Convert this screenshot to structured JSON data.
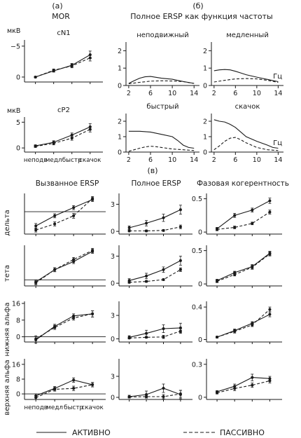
{
  "figure": {
    "label_a": "(а)",
    "label_b": "(б)",
    "label_c": "(в)",
    "mor_title": "MOR",
    "ersp_freq_title": "Полное ERSP как функция частоты",
    "unit_uv": "мкВ",
    "unit_hz": "Гц",
    "legend": {
      "active": "АКТИВНО",
      "passive": "ПАССИВНО"
    }
  },
  "conditions": [
    "неподв",
    "медл",
    "быстр",
    "скачок"
  ],
  "column_titles": [
    "Вызванное ERSP",
    "Полное ERSP",
    "Фазовая когерентность"
  ],
  "row_labels": [
    "дельта",
    "тета",
    "нижняя альфа",
    "верхняя альфа"
  ],
  "chart_data": [
    {
      "id": "mor-cn1",
      "type": "line",
      "title": "cN1",
      "ylabel": "мкВ",
      "categories": [
        "неподв",
        "медл",
        "быстр",
        "скачок"
      ],
      "yticks": [
        -5,
        0
      ],
      "ylim": [
        0.8,
        -6
      ],
      "grid": false,
      "series": [
        {
          "name": "АКТИВНО",
          "style": "solid",
          "values": [
            0,
            -1.0,
            -1.9,
            -3.6
          ],
          "errors": [
            0.1,
            0.2,
            0.3,
            0.6
          ]
        },
        {
          "name": "ПАССИВНО",
          "style": "dashed",
          "values": [
            0,
            -1.1,
            -1.8,
            -3.1
          ],
          "errors": [
            0.1,
            0.2,
            0.3,
            0.5
          ]
        }
      ]
    },
    {
      "id": "mor-cp2",
      "type": "line",
      "title": "cP2",
      "ylabel": "мкВ",
      "categories": [
        "неподв",
        "медл",
        "быстр",
        "скачок"
      ],
      "yticks": [
        0,
        5
      ],
      "ylim": [
        -0.8,
        6
      ],
      "grid": false,
      "series": [
        {
          "name": "АКТИВНО",
          "style": "solid",
          "values": [
            0.4,
            1.1,
            2.5,
            4.1
          ],
          "errors": [
            0.2,
            0.3,
            0.4,
            0.6
          ]
        },
        {
          "name": "ПАССИВНО",
          "style": "dashed",
          "values": [
            0.3,
            0.9,
            1.9,
            3.6
          ],
          "errors": [
            0.2,
            0.3,
            0.4,
            0.5
          ]
        }
      ]
    },
    {
      "id": "ersp-still",
      "type": "line",
      "title": "неподвижный",
      "xticks": [
        2,
        6,
        10,
        14
      ],
      "xlim": [
        1.5,
        15
      ],
      "yticks": [
        0,
        1,
        2
      ],
      "ylim": [
        0,
        2.5
      ],
      "series": [
        {
          "name": "АКТИВНО",
          "style": "solid",
          "x": [
            2,
            3,
            4,
            5,
            6,
            7,
            8,
            10,
            12,
            14
          ],
          "values": [
            0.12,
            0.28,
            0.42,
            0.5,
            0.52,
            0.47,
            0.42,
            0.36,
            0.23,
            0.12
          ]
        },
        {
          "name": "ПАССИВНО",
          "style": "dashed",
          "x": [
            2,
            4,
            6,
            8,
            10,
            12,
            14
          ],
          "values": [
            0.1,
            0.18,
            0.25,
            0.27,
            0.26,
            0.22,
            0.12
          ]
        }
      ]
    },
    {
      "id": "ersp-slow",
      "type": "line",
      "title": "медленный",
      "xunit": "Гц",
      "xticks": [
        2,
        6,
        10,
        14
      ],
      "xlim": [
        1.5,
        15
      ],
      "yticks": [
        0,
        1,
        2
      ],
      "ylim": [
        0,
        2.5
      ],
      "series": [
        {
          "name": "АКТИВНО",
          "style": "solid",
          "x": [
            2,
            3,
            4,
            5,
            6,
            7,
            8,
            10,
            12,
            14
          ],
          "values": [
            0.85,
            0.9,
            0.92,
            0.9,
            0.82,
            0.72,
            0.62,
            0.48,
            0.35,
            0.22
          ]
        },
        {
          "name": "ПАССИВНО",
          "style": "dashed",
          "x": [
            2,
            4,
            6,
            8,
            10,
            12,
            14
          ],
          "values": [
            0.2,
            0.3,
            0.38,
            0.4,
            0.38,
            0.3,
            0.18
          ]
        }
      ]
    },
    {
      "id": "ersp-fast",
      "type": "line",
      "title": "быстрый",
      "xticks": [
        2,
        6,
        10,
        14
      ],
      "xlim": [
        1.5,
        15
      ],
      "yticks": [
        0,
        1,
        2
      ],
      "ylim": [
        0,
        2.5
      ],
      "series": [
        {
          "name": "АКТИВНО",
          "style": "solid",
          "x": [
            2,
            4,
            6,
            8,
            10,
            11,
            12,
            13,
            14
          ],
          "values": [
            1.35,
            1.35,
            1.3,
            1.15,
            1.0,
            0.75,
            0.45,
            0.3,
            0.25
          ]
        },
        {
          "name": "ПАССИВНО",
          "style": "dashed",
          "x": [
            2,
            3,
            4,
            5,
            6,
            7,
            8,
            10,
            12,
            14
          ],
          "values": [
            0.05,
            0.15,
            0.25,
            0.33,
            0.38,
            0.35,
            0.3,
            0.2,
            0.15,
            0.1
          ]
        }
      ]
    },
    {
      "id": "ersp-jump",
      "type": "line",
      "title": "скачок",
      "xunit": "Гц",
      "xticks": [
        2,
        6,
        10,
        14
      ],
      "xlim": [
        1.5,
        15
      ],
      "yticks": [
        0,
        1,
        2
      ],
      "ylim": [
        0,
        2.5
      ],
      "series": [
        {
          "name": "АКТИВНО",
          "style": "solid",
          "x": [
            2,
            3,
            4,
            5,
            6,
            7,
            8,
            10,
            12,
            13,
            14
          ],
          "values": [
            2.1,
            2.0,
            1.95,
            1.8,
            1.6,
            1.3,
            1.0,
            0.7,
            0.45,
            0.3,
            0.25
          ]
        },
        {
          "name": "ПАССИВНО",
          "style": "dashed",
          "x": [
            2,
            3,
            4,
            5,
            6,
            7,
            8,
            10,
            12,
            14
          ],
          "values": [
            0.15,
            0.4,
            0.7,
            0.9,
            0.95,
            0.8,
            0.6,
            0.3,
            0.15,
            0.1
          ]
        }
      ]
    },
    {
      "id": "evoked-delta",
      "type": "line",
      "column": "Вызванное ERSP",
      "row": "дельта",
      "categories": [
        "неподв",
        "медл",
        "быстр",
        "скачок"
      ],
      "yticks": [],
      "ylim": [
        -11,
        9
      ],
      "zero_line": true,
      "series": [
        {
          "name": "АКТИВНО",
          "style": "solid",
          "values": [
            -7,
            -2,
            2,
            6
          ],
          "errors": [
            1.2,
            1,
            1,
            1
          ]
        },
        {
          "name": "ПАССИВНО",
          "style": "dashed",
          "values": [
            -9,
            -6,
            -2,
            6.5
          ],
          "errors": [
            1,
            1,
            1.2,
            1
          ]
        }
      ]
    },
    {
      "id": "total-delta",
      "type": "line",
      "column": "Полное ERSP",
      "row": "дельта",
      "categories": [
        "неподв",
        "медл",
        "быстр",
        "скачок"
      ],
      "yticks": [
        0,
        3
      ],
      "ylim": [
        -0.3,
        4.2
      ],
      "series": [
        {
          "name": "АКТИВНО",
          "style": "solid",
          "values": [
            0.4,
            0.9,
            1.5,
            2.4
          ],
          "errors": [
            0.2,
            0.3,
            0.4,
            0.5
          ]
        },
        {
          "name": "ПАССИВНО",
          "style": "dashed",
          "values": [
            0.05,
            0.05,
            0.1,
            0.5
          ],
          "errors": [
            0.1,
            0.1,
            0.1,
            0.2
          ]
        }
      ]
    },
    {
      "id": "coh-delta",
      "type": "line",
      "column": "Фазовая когерентность",
      "row": "дельта",
      "categories": [
        "неподв",
        "медл",
        "быстр",
        "скачок"
      ],
      "yticks": [
        0,
        0.5
      ],
      "ylim": [
        -0.03,
        0.58
      ],
      "series": [
        {
          "name": "АКТИВНО",
          "style": "solid",
          "values": [
            0.05,
            0.25,
            0.33,
            0.47
          ],
          "errors": [
            0.02,
            0.03,
            0.03,
            0.04
          ]
        },
        {
          "name": "ПАССИВНО",
          "style": "dashed",
          "values": [
            0.04,
            0.07,
            0.13,
            0.3
          ],
          "errors": [
            0.02,
            0.02,
            0.02,
            0.03
          ]
        }
      ]
    },
    {
      "id": "evoked-theta",
      "type": "line",
      "column": "Вызванное ERSP",
      "row": "тета",
      "categories": [
        "неподв",
        "медл",
        "быстр",
        "скачок"
      ],
      "yticks": [],
      "ylim": [
        -3,
        17
      ],
      "zero_line": true,
      "series": [
        {
          "name": "АКТИВНО",
          "style": "solid",
          "values": [
            -1,
            5,
            9,
            14
          ],
          "errors": [
            1,
            1,
            1,
            1
          ]
        },
        {
          "name": "ПАССИВНО",
          "style": "dashed",
          "values": [
            -1.5,
            5,
            10,
            14.5
          ],
          "errors": [
            1,
            1,
            1,
            1
          ]
        }
      ]
    },
    {
      "id": "total-theta",
      "type": "line",
      "column": "Полное ERSP",
      "row": "тета",
      "categories": [
        "неподв",
        "медл",
        "быстр",
        "скачок"
      ],
      "yticks": [
        0,
        3
      ],
      "ylim": [
        -0.3,
        4.2
      ],
      "series": [
        {
          "name": "АКТИВНО",
          "style": "solid",
          "values": [
            0.3,
            0.8,
            1.5,
            2.5
          ],
          "errors": [
            0.2,
            0.3,
            0.3,
            0.5
          ]
        },
        {
          "name": "ПАССИВНО",
          "style": "dashed",
          "values": [
            0.1,
            0.2,
            0.4,
            1.5
          ],
          "errors": [
            0.1,
            0.1,
            0.1,
            0.2
          ]
        }
      ]
    },
    {
      "id": "coh-theta",
      "type": "line",
      "column": "Фазовая когерентность",
      "row": "тета",
      "categories": [
        "неподв",
        "медл",
        "быстр",
        "скачок"
      ],
      "yticks": [
        0,
        0.5
      ],
      "ylim": [
        -0.03,
        0.58
      ],
      "series": [
        {
          "name": "АКТИВНО",
          "style": "solid",
          "values": [
            0.05,
            0.17,
            0.26,
            0.46
          ],
          "errors": [
            0.02,
            0.02,
            0.03,
            0.03
          ]
        },
        {
          "name": "ПАССИВНО",
          "style": "dashed",
          "values": [
            0.04,
            0.14,
            0.25,
            0.45
          ],
          "errors": [
            0.02,
            0.02,
            0.03,
            0.03
          ]
        }
      ]
    },
    {
      "id": "evoked-lowalpha",
      "type": "line",
      "column": "Вызванное ERSP",
      "row": "нижняя альфа",
      "categories": [
        "неподв",
        "медл",
        "быстр",
        "скачок"
      ],
      "yticks": [
        0,
        8,
        16
      ],
      "ylim": [
        -2.5,
        17
      ],
      "zero_line": true,
      "series": [
        {
          "name": "АКТИВНО",
          "style": "solid",
          "values": [
            -1.5,
            5,
            10,
            11
          ],
          "errors": [
            1.5,
            1,
            1,
            1.5
          ]
        },
        {
          "name": "ПАССИВНО",
          "style": "dashed",
          "values": [
            -1,
            4.5,
            9,
            11
          ],
          "errors": [
            1.5,
            1,
            1,
            1.5
          ]
        }
      ]
    },
    {
      "id": "total-lowalpha",
      "type": "line",
      "column": "Полное ERSP",
      "row": "нижняя альфа",
      "categories": [
        "неподв",
        "медл",
        "быстр",
        "скачок"
      ],
      "yticks": [
        0,
        3
      ],
      "ylim": [
        -0.4,
        4.8
      ],
      "series": [
        {
          "name": "АКТИВНО",
          "style": "solid",
          "values": [
            0.2,
            0.7,
            1.3,
            1.4
          ],
          "errors": [
            0.2,
            0.4,
            0.5,
            0.6
          ]
        },
        {
          "name": "ПАССИВНО",
          "style": "dashed",
          "values": [
            0.1,
            0.2,
            0.25,
            1.0
          ],
          "errors": [
            0.1,
            0.1,
            0.2,
            0.3
          ]
        }
      ]
    },
    {
      "id": "coh-lowalpha",
      "type": "line",
      "column": "Фазовая когерентность",
      "row": "нижняя альфа",
      "categories": [
        "неподв",
        "медл",
        "быстр",
        "скачок"
      ],
      "yticks": [
        0,
        0.4
      ],
      "ylim": [
        -0.03,
        0.47
      ],
      "series": [
        {
          "name": "АКТИВНО",
          "style": "solid",
          "values": [
            0.03,
            0.11,
            0.2,
            0.31
          ],
          "errors": [
            0.01,
            0.02,
            0.02,
            0.03
          ]
        },
        {
          "name": "ПАССИВНО",
          "style": "dashed",
          "values": [
            0.03,
            0.1,
            0.18,
            0.37
          ],
          "errors": [
            0.01,
            0.02,
            0.02,
            0.03
          ]
        }
      ]
    },
    {
      "id": "evoked-highalpha",
      "type": "line",
      "column": "Вызванное ERSP",
      "row": "верхняя альфа",
      "categories": [
        "неподв",
        "медл",
        "быстр",
        "скачок"
      ],
      "yticks": [
        0,
        8,
        16
      ],
      "ylim": [
        -3,
        19
      ],
      "zero_line": true,
      "series": [
        {
          "name": "АКТИВНО",
          "style": "solid",
          "values": [
            -1,
            3,
            7.5,
            5
          ],
          "errors": [
            1,
            1,
            1.2,
            1.2
          ]
        },
        {
          "name": "ПАССИВНО",
          "style": "dashed",
          "values": [
            -2,
            2.5,
            3,
            5
          ],
          "errors": [
            1,
            1,
            1.2,
            1.2
          ]
        }
      ]
    },
    {
      "id": "total-highalpha",
      "type": "line",
      "column": "Полное ERSP",
      "row": "верхняя альфа",
      "categories": [
        "неподв",
        "медл",
        "быстр",
        "скачок"
      ],
      "yticks": [
        0,
        3
      ],
      "ylim": [
        -0.3,
        5.5
      ],
      "series": [
        {
          "name": "АКТИВНО",
          "style": "solid",
          "values": [
            0.1,
            0.4,
            1.3,
            0.4
          ],
          "errors": [
            0.2,
            0.5,
            0.6,
            0.6
          ]
        },
        {
          "name": "ПАССИВНО",
          "style": "dashed",
          "values": [
            0.05,
            0.1,
            0.1,
            0.5
          ],
          "errors": [
            0.1,
            0.2,
            0.3,
            0.5
          ]
        }
      ]
    },
    {
      "id": "coh-highalpha",
      "type": "line",
      "column": "Фазовая когерентность",
      "row": "верхняя альфа",
      "categories": [
        "неподв",
        "медл",
        "быстр",
        "скачок"
      ],
      "yticks": [
        0,
        0.3
      ],
      "ylim": [
        -0.02,
        0.35
      ],
      "series": [
        {
          "name": "АКТИВНО",
          "style": "solid",
          "values": [
            0.05,
            0.1,
            0.18,
            0.17
          ],
          "errors": [
            0.01,
            0.02,
            0.03,
            0.02
          ]
        },
        {
          "name": "ПАССИВНО",
          "style": "dashed",
          "values": [
            0.04,
            0.08,
            0.11,
            0.15
          ],
          "errors": [
            0.01,
            0.02,
            0.02,
            0.02
          ]
        }
      ]
    }
  ]
}
